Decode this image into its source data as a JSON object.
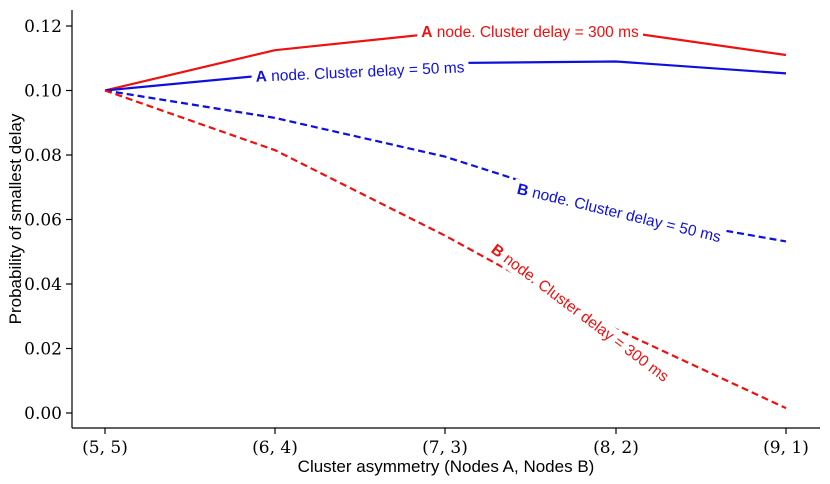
{
  "chart_data": {
    "type": "line",
    "title": "",
    "xlabel": "Cluster asymmetry (Nodes A, Nodes B)",
    "ylabel": "Probability of smallest delay",
    "categories": [
      "(5, 5)",
      "(6, 4)",
      "(7, 3)",
      "(8, 2)",
      "(9, 1)"
    ],
    "ylim": [
      -0.004,
      0.125
    ],
    "yticks": [
      0.0,
      0.02,
      0.04,
      0.06,
      0.08,
      0.1,
      0.12
    ],
    "ytick_labels": [
      "0.00",
      "0.02",
      "0.04",
      "0.06",
      "0.08",
      "0.10",
      "0.12"
    ],
    "grid": false,
    "series": [
      {
        "id": "a300",
        "label_bold": "A",
        "label_rest": " node. Cluster delay = 300 ms",
        "color": "#ee1111",
        "dashed": false,
        "values": [
          0.1,
          0.1125,
          0.118,
          0.1185,
          0.111
        ]
      },
      {
        "id": "a50",
        "label_bold": "A",
        "label_rest": " node. Cluster delay = 50 ms",
        "color": "#1010dd",
        "dashed": false,
        "values": [
          0.1,
          0.105,
          0.1085,
          0.109,
          0.1053
        ]
      },
      {
        "id": "b50",
        "label_bold": "B",
        "label_rest": " node. Cluster delay = 50 ms",
        "color": "#1010dd",
        "dashed": true,
        "values": [
          0.1,
          0.0915,
          0.0795,
          0.0625,
          0.0532
        ]
      },
      {
        "id": "b300",
        "label_bold": "B",
        "label_rest": " node. Cluster delay = 300 ms",
        "color": "#ee1111",
        "dashed": true,
        "values": [
          0.1,
          0.0815,
          0.055,
          0.026,
          0.0015
        ]
      }
    ]
  }
}
